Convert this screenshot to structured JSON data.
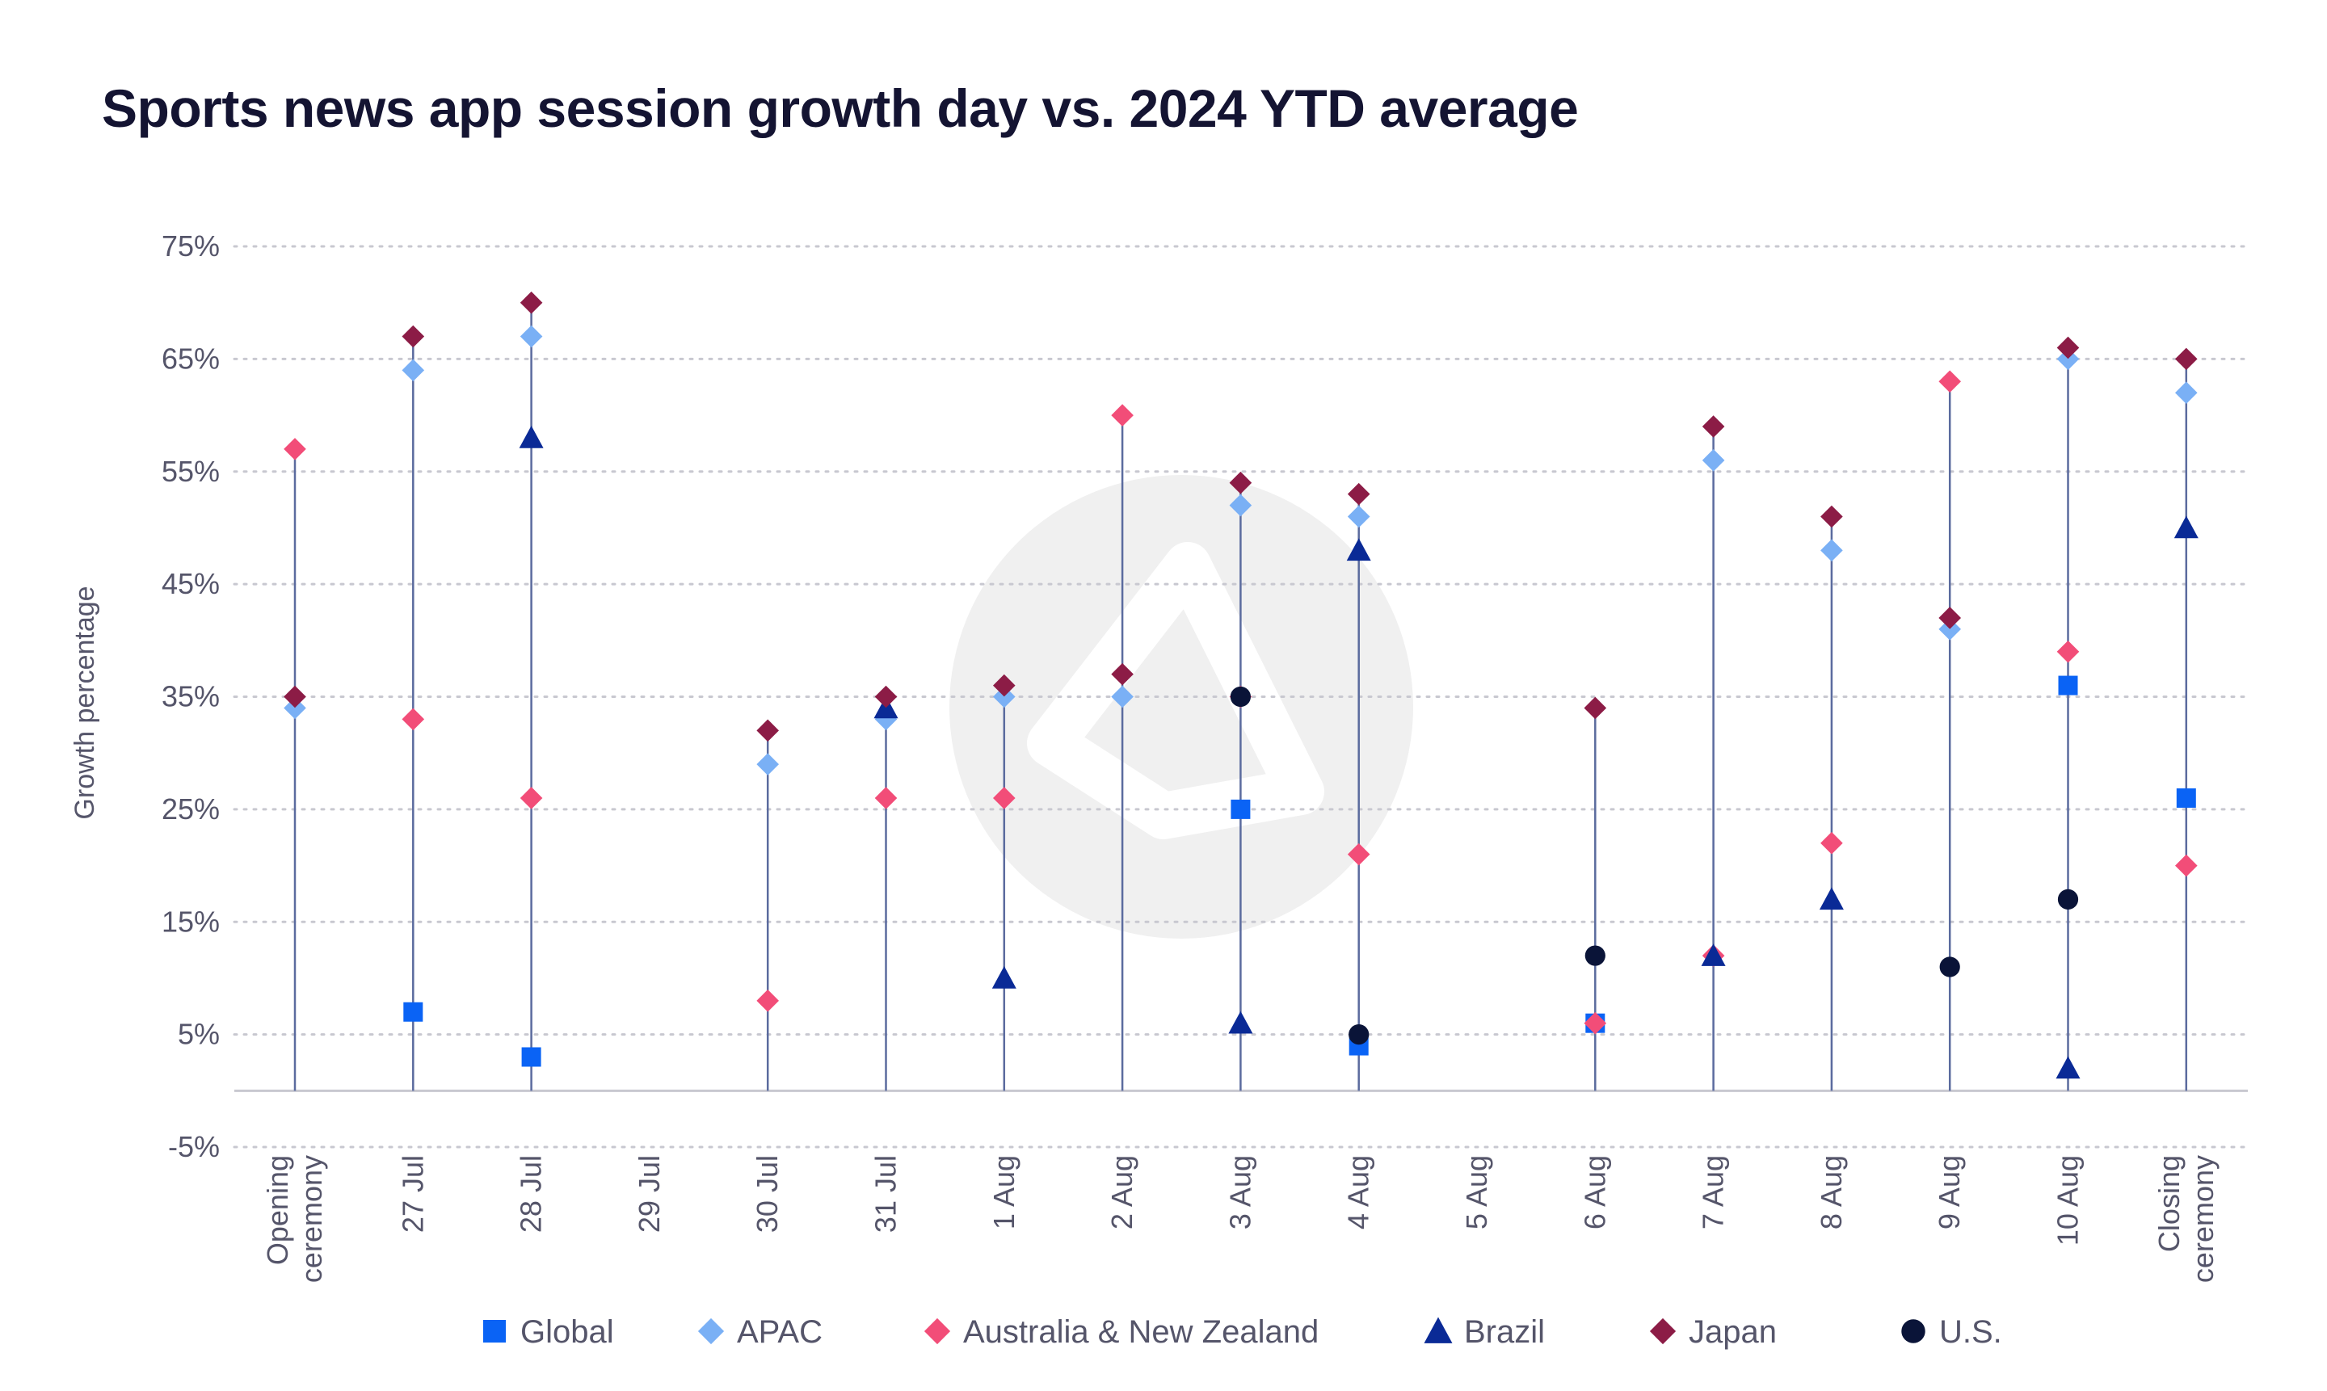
{
  "chart_data": {
    "type": "scatter",
    "title": "Sports news app session growth day vs. 2024 YTD average",
    "ylabel": "Growth percentage",
    "xlabel": "",
    "ylim": [
      -5,
      75
    ],
    "yticks": [
      -5,
      5,
      15,
      25,
      35,
      45,
      55,
      65,
      75
    ],
    "ytick_labels": [
      "-5%",
      "5%",
      "15%",
      "25%",
      "35%",
      "45%",
      "55%",
      "65%",
      "75%"
    ],
    "grid": true,
    "legend": "bottom",
    "categories": [
      [
        "Opening",
        "ceremony"
      ],
      [
        "27 Jul"
      ],
      [
        "28 Jul"
      ],
      [
        "29 Jul"
      ],
      [
        "30 Jul"
      ],
      [
        "31 Jul"
      ],
      [
        "1 Aug"
      ],
      [
        "2 Aug"
      ],
      [
        "3 Aug"
      ],
      [
        "4 Aug"
      ],
      [
        "5 Aug"
      ],
      [
        "6 Aug"
      ],
      [
        "7 Aug"
      ],
      [
        "8 Aug"
      ],
      [
        "9 Aug"
      ],
      [
        "10 Aug"
      ],
      [
        "Closing",
        "ceremony"
      ]
    ],
    "series": [
      {
        "name": "Global",
        "marker": "square",
        "color": "#0a63f5",
        "values": [
          null,
          7,
          3,
          null,
          null,
          null,
          null,
          null,
          25,
          4,
          null,
          6,
          null,
          null,
          null,
          36,
          26
        ]
      },
      {
        "name": "APAC",
        "marker": "diamond",
        "color": "#7ab0f5",
        "values": [
          34,
          64,
          67,
          null,
          29,
          33,
          35,
          35,
          52,
          51,
          null,
          null,
          56,
          48,
          41,
          65,
          62
        ]
      },
      {
        "name": "Australia & New Zealand",
        "marker": "diamond",
        "color": "#f24d78",
        "values": [
          57,
          33,
          26,
          null,
          8,
          26,
          26,
          60,
          35,
          21,
          null,
          6,
          12,
          22,
          63,
          39,
          20
        ]
      },
      {
        "name": "Brazil",
        "marker": "triangle",
        "color": "#0a2a96",
        "values": [
          null,
          null,
          58,
          null,
          null,
          34,
          10,
          null,
          6,
          48,
          null,
          null,
          12,
          17,
          null,
          2,
          50
        ]
      },
      {
        "name": "Japan",
        "marker": "diamond",
        "color": "#8c1c46",
        "values": [
          35,
          67,
          70,
          null,
          32,
          35,
          36,
          37,
          54,
          53,
          null,
          34,
          59,
          51,
          42,
          66,
          65
        ]
      },
      {
        "name": "U.S.",
        "marker": "circle",
        "color": "#0a1438",
        "values": [
          null,
          null,
          null,
          null,
          null,
          null,
          null,
          null,
          35,
          5,
          null,
          12,
          null,
          null,
          11,
          17,
          null
        ]
      }
    ]
  },
  "colors": {
    "stem": "#5b6b9e",
    "grid": "#c8c8d0",
    "axis": "#c8c8d0",
    "watermark": "#f0f0f0"
  }
}
